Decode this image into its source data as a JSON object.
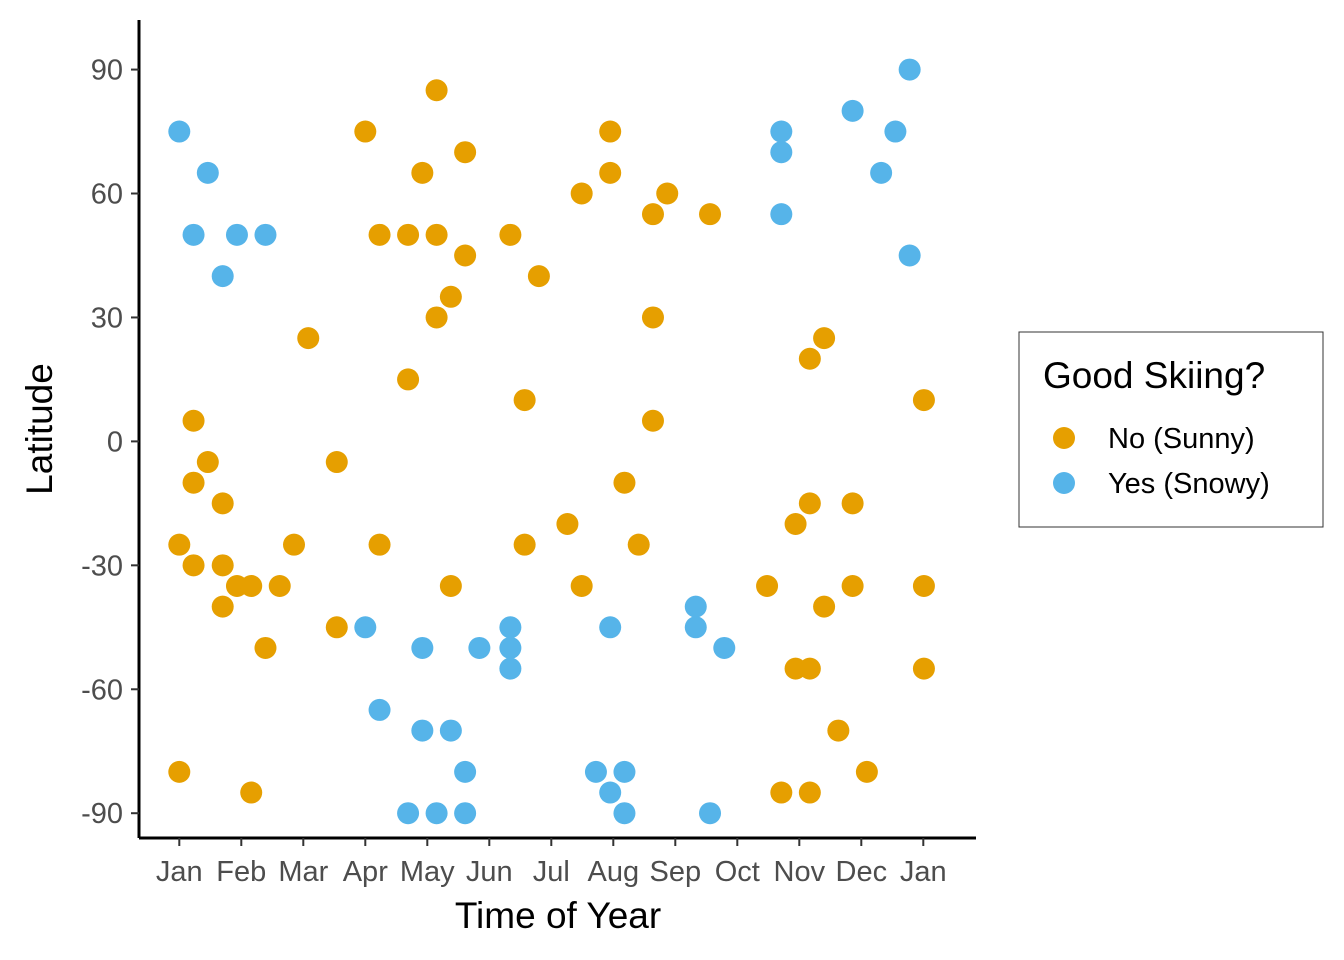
{
  "chart_data": {
    "type": "scatter",
    "xlabel": "Time of Year",
    "ylabel": "Latitude",
    "ylim": [
      -96,
      102
    ],
    "xlim": [
      0.35,
      13.85
    ],
    "x_ticks": [
      {
        "value": 1,
        "label": "Jan"
      },
      {
        "value": 2,
        "label": "Feb"
      },
      {
        "value": 3,
        "label": "Mar"
      },
      {
        "value": 4,
        "label": "Apr"
      },
      {
        "value": 5,
        "label": "May"
      },
      {
        "value": 6,
        "label": "Jun"
      },
      {
        "value": 7,
        "label": "Jul"
      },
      {
        "value": 8,
        "label": "Aug"
      },
      {
        "value": 9,
        "label": "Sep"
      },
      {
        "value": 10,
        "label": "Oct"
      },
      {
        "value": 11,
        "label": "Nov"
      },
      {
        "value": 12,
        "label": "Dec"
      },
      {
        "value": 13,
        "label": "Jan"
      }
    ],
    "y_ticks": [
      {
        "value": 90,
        "label": "90"
      },
      {
        "value": 60,
        "label": "60"
      },
      {
        "value": 30,
        "label": "30"
      },
      {
        "value": 0,
        "label": "0"
      },
      {
        "value": -30,
        "label": "-30"
      },
      {
        "value": -60,
        "label": "-60"
      },
      {
        "value": -90,
        "label": "-90"
      }
    ],
    "grid": false,
    "legend": {
      "title": "Good Skiing?",
      "position": "right",
      "entries": [
        {
          "label": "No (Sunny)",
          "color": "#E69F00"
        },
        {
          "label": "Yes (Snowy)",
          "color": "#56B4E9"
        }
      ]
    },
    "series": [
      {
        "name": "No (Sunny)",
        "color": "#E69F00",
        "points": [
          [
            1.0,
            -25
          ],
          [
            1.0,
            -80
          ],
          [
            1.23,
            5
          ],
          [
            1.23,
            -10
          ],
          [
            1.23,
            -30
          ],
          [
            1.46,
            -5
          ],
          [
            1.7,
            -15
          ],
          [
            1.7,
            -30
          ],
          [
            1.7,
            -40
          ],
          [
            1.93,
            -35
          ],
          [
            2.16,
            -35
          ],
          [
            2.16,
            -85
          ],
          [
            2.39,
            -50
          ],
          [
            2.62,
            -35
          ],
          [
            2.85,
            -25
          ],
          [
            3.08,
            25
          ],
          [
            3.54,
            -5
          ],
          [
            3.54,
            -45
          ],
          [
            4.0,
            75
          ],
          [
            4.23,
            50
          ],
          [
            4.23,
            -25
          ],
          [
            4.69,
            50
          ],
          [
            4.69,
            15
          ],
          [
            4.92,
            65
          ],
          [
            5.15,
            85
          ],
          [
            5.15,
            50
          ],
          [
            5.15,
            30
          ],
          [
            5.38,
            35
          ],
          [
            5.38,
            -35
          ],
          [
            5.61,
            70
          ],
          [
            5.61,
            45
          ],
          [
            6.34,
            50
          ],
          [
            6.57,
            10
          ],
          [
            6.57,
            -25
          ],
          [
            6.8,
            40
          ],
          [
            7.26,
            -20
          ],
          [
            7.49,
            60
          ],
          [
            7.49,
            -35
          ],
          [
            7.95,
            75
          ],
          [
            7.95,
            65
          ],
          [
            8.18,
            -10
          ],
          [
            8.41,
            -25
          ],
          [
            8.64,
            55
          ],
          [
            8.64,
            30
          ],
          [
            8.64,
            5
          ],
          [
            8.87,
            60
          ],
          [
            9.56,
            55
          ],
          [
            10.48,
            -35
          ],
          [
            10.71,
            -85
          ],
          [
            10.94,
            -20
          ],
          [
            10.94,
            -55
          ],
          [
            11.17,
            20
          ],
          [
            11.17,
            -15
          ],
          [
            11.17,
            -55
          ],
          [
            11.17,
            -85
          ],
          [
            11.4,
            25
          ],
          [
            11.4,
            -40
          ],
          [
            11.63,
            -70
          ],
          [
            11.86,
            -15
          ],
          [
            11.86,
            -35
          ],
          [
            12.09,
            -80
          ],
          [
            13.01,
            10
          ],
          [
            13.01,
            -35
          ],
          [
            13.01,
            -55
          ]
        ]
      },
      {
        "name": "Yes (Snowy)",
        "color": "#56B4E9",
        "points": [
          [
            1.0,
            75
          ],
          [
            1.23,
            50
          ],
          [
            1.46,
            65
          ],
          [
            1.7,
            40
          ],
          [
            1.93,
            50
          ],
          [
            2.39,
            50
          ],
          [
            4.0,
            -45
          ],
          [
            4.23,
            -65
          ],
          [
            4.69,
            -90
          ],
          [
            4.92,
            -50
          ],
          [
            4.92,
            -70
          ],
          [
            5.15,
            -90
          ],
          [
            5.38,
            -70
          ],
          [
            5.61,
            -80
          ],
          [
            5.61,
            -90
          ],
          [
            5.84,
            -50
          ],
          [
            6.34,
            -45
          ],
          [
            6.34,
            -50
          ],
          [
            6.34,
            -55
          ],
          [
            7.72,
            -80
          ],
          [
            7.95,
            -45
          ],
          [
            7.95,
            -85
          ],
          [
            8.18,
            -80
          ],
          [
            8.18,
            -90
          ],
          [
            9.33,
            -40
          ],
          [
            9.33,
            -45
          ],
          [
            9.56,
            -90
          ],
          [
            9.79,
            -50
          ],
          [
            10.71,
            75
          ],
          [
            10.71,
            70
          ],
          [
            10.71,
            55
          ],
          [
            11.86,
            80
          ],
          [
            12.32,
            65
          ],
          [
            12.55,
            75
          ],
          [
            12.78,
            90
          ],
          [
            12.78,
            45
          ]
        ]
      }
    ]
  }
}
